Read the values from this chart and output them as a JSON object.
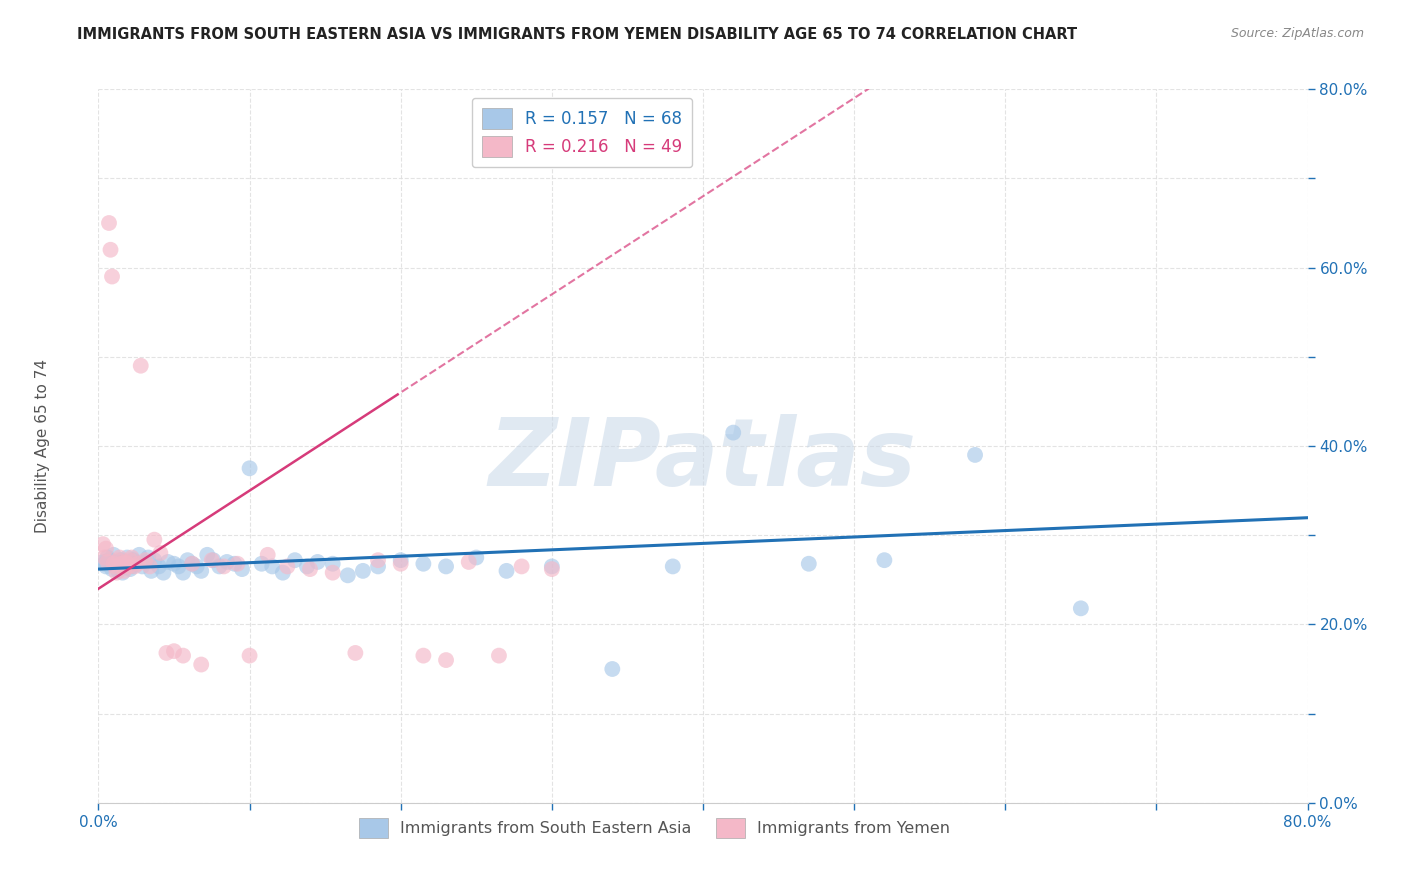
{
  "title": "IMMIGRANTS FROM SOUTH EASTERN ASIA VS IMMIGRANTS FROM YEMEN DISABILITY AGE 65 TO 74 CORRELATION CHART",
  "source": "Source: ZipAtlas.com",
  "ylabel": "Disability Age 65 to 74",
  "xlim": [
    0.0,
    0.8
  ],
  "ylim": [
    0.0,
    0.8
  ],
  "xticks": [
    0.0,
    0.1,
    0.2,
    0.3,
    0.4,
    0.5,
    0.6,
    0.7,
    0.8
  ],
  "yticks": [
    0.0,
    0.1,
    0.2,
    0.3,
    0.4,
    0.5,
    0.6,
    0.7,
    0.8
  ],
  "blue_R": 0.157,
  "blue_N": 68,
  "pink_R": 0.216,
  "pink_N": 49,
  "blue_color": "#a8c8e8",
  "pink_color": "#f4b8c8",
  "blue_line_color": "#2171b5",
  "pink_line_color": "#d63b7a",
  "legend_label_blue": "Immigrants from South Eastern Asia",
  "legend_label_pink": "Immigrants from Yemen",
  "watermark": "ZIPatlas",
  "blue_dots_x": [
    0.003,
    0.004,
    0.005,
    0.006,
    0.007,
    0.008,
    0.009,
    0.01,
    0.011,
    0.012,
    0.013,
    0.014,
    0.015,
    0.016,
    0.017,
    0.018,
    0.019,
    0.02,
    0.021,
    0.022,
    0.023,
    0.025,
    0.027,
    0.029,
    0.031,
    0.033,
    0.035,
    0.037,
    0.04,
    0.043,
    0.046,
    0.05,
    0.053,
    0.056,
    0.059,
    0.062,
    0.065,
    0.068,
    0.072,
    0.076,
    0.08,
    0.085,
    0.09,
    0.095,
    0.1,
    0.108,
    0.115,
    0.122,
    0.13,
    0.138,
    0.145,
    0.155,
    0.165,
    0.175,
    0.185,
    0.2,
    0.215,
    0.23,
    0.25,
    0.27,
    0.3,
    0.34,
    0.38,
    0.42,
    0.47,
    0.52,
    0.58,
    0.65
  ],
  "blue_dots_y": [
    0.27,
    0.268,
    0.265,
    0.275,
    0.272,
    0.268,
    0.262,
    0.278,
    0.27,
    0.265,
    0.26,
    0.268,
    0.272,
    0.258,
    0.265,
    0.27,
    0.275,
    0.268,
    0.262,
    0.265,
    0.272,
    0.268,
    0.278,
    0.265,
    0.27,
    0.275,
    0.26,
    0.272,
    0.265,
    0.258,
    0.27,
    0.268,
    0.265,
    0.258,
    0.272,
    0.268,
    0.265,
    0.26,
    0.278,
    0.272,
    0.265,
    0.27,
    0.268,
    0.262,
    0.375,
    0.268,
    0.265,
    0.258,
    0.272,
    0.265,
    0.27,
    0.268,
    0.255,
    0.26,
    0.265,
    0.272,
    0.268,
    0.265,
    0.275,
    0.26,
    0.265,
    0.15,
    0.265,
    0.415,
    0.268,
    0.272,
    0.39,
    0.218
  ],
  "pink_dots_x": [
    0.003,
    0.004,
    0.005,
    0.006,
    0.007,
    0.008,
    0.009,
    0.01,
    0.011,
    0.012,
    0.013,
    0.014,
    0.015,
    0.016,
    0.017,
    0.018,
    0.019,
    0.02,
    0.021,
    0.022,
    0.024,
    0.026,
    0.028,
    0.031,
    0.034,
    0.037,
    0.041,
    0.045,
    0.05,
    0.056,
    0.062,
    0.068,
    0.075,
    0.083,
    0.092,
    0.1,
    0.112,
    0.125,
    0.14,
    0.155,
    0.17,
    0.185,
    0.2,
    0.215,
    0.23,
    0.245,
    0.265,
    0.28,
    0.3
  ],
  "pink_dots_y": [
    0.29,
    0.275,
    0.285,
    0.27,
    0.65,
    0.62,
    0.59,
    0.268,
    0.265,
    0.258,
    0.272,
    0.275,
    0.268,
    0.265,
    0.26,
    0.27,
    0.268,
    0.265,
    0.272,
    0.275,
    0.265,
    0.268,
    0.49,
    0.272,
    0.265,
    0.295,
    0.28,
    0.168,
    0.17,
    0.165,
    0.268,
    0.155,
    0.272,
    0.265,
    0.268,
    0.165,
    0.278,
    0.265,
    0.262,
    0.258,
    0.168,
    0.272,
    0.268,
    0.165,
    0.16,
    0.27,
    0.165,
    0.265,
    0.262
  ]
}
